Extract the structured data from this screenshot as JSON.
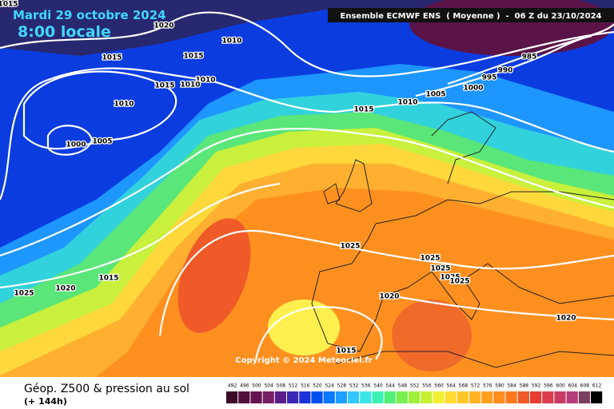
{
  "map": {
    "title": "Mardi 29 octobre 2024",
    "time": "8:00 locale",
    "model": "Ensemble ECMWF ENS  ( Moyenne )  -  06 Z du 23/10/2024",
    "copyright": "Copyright © 2024 Meteociel.fr",
    "isobar_labels": [
      1015,
      1020,
      1010,
      1015,
      1015,
      1010,
      1015,
      1010,
      1010,
      1005,
      1000,
      1015,
      1010,
      1005,
      1000,
      995,
      990,
      985,
      1025,
      1025,
      1025,
      1025,
      1025,
      1020,
      1020,
      1015,
      1020,
      1025,
      1015
    ]
  },
  "footer": {
    "title": "Géop. Z500 & pression au sol",
    "lead": "(+ 144h)",
    "scale": {
      "values": [
        492,
        496,
        500,
        504,
        508,
        512,
        516,
        520,
        524,
        528,
        532,
        536,
        540,
        544,
        548,
        552,
        556,
        560,
        564,
        568,
        572,
        576,
        580,
        584,
        588,
        592,
        596,
        600,
        604,
        608,
        612
      ],
      "colors": [
        "#3c0a28",
        "#50103c",
        "#641450",
        "#781e64",
        "#5a1e8c",
        "#3c28b4",
        "#1e32dc",
        "#0050f0",
        "#0a78ff",
        "#1ea0ff",
        "#32c8ff",
        "#3ce6e6",
        "#3cf0b4",
        "#50f078",
        "#78f050",
        "#a0f03c",
        "#c8f032",
        "#f0f032",
        "#ffdc32",
        "#ffc828",
        "#ffb428",
        "#ffa01e",
        "#ff8c1e",
        "#ff781e",
        "#f05a28",
        "#e63c32",
        "#dc3c50",
        "#c83c64",
        "#b43c78",
        "#784060",
        "#000000"
      ]
    }
  }
}
